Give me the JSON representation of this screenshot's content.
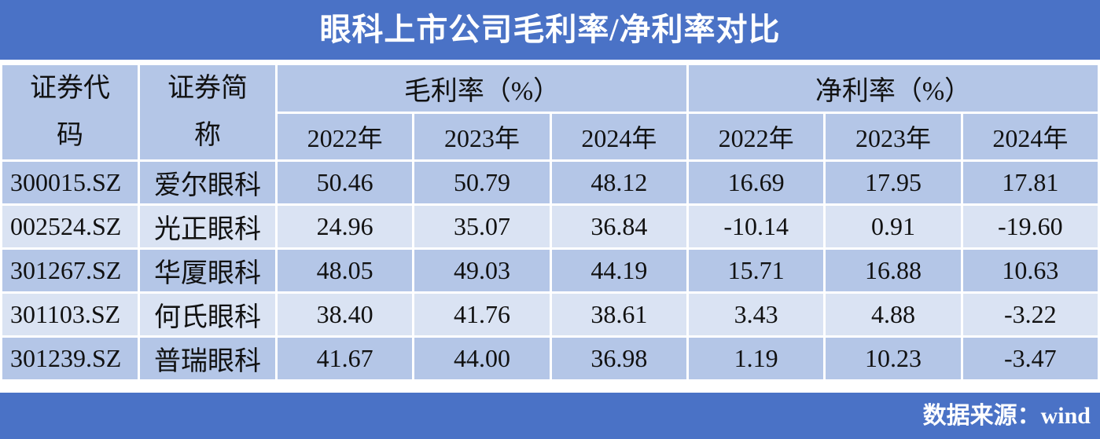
{
  "title": "眼科上市公司毛利率/净利率对比",
  "table": {
    "header": {
      "code": "证券代码",
      "name": "证券简称",
      "groups": [
        "毛利率（%）",
        "净利率（%）"
      ],
      "years": [
        "2022年",
        "2023年",
        "2024年",
        "2022年",
        "2023年",
        "2024年"
      ]
    },
    "rows": [
      [
        "300015.SZ",
        "爱尔眼科",
        "50.46",
        "50.79",
        "48.12",
        "16.69",
        "17.95",
        "17.81"
      ],
      [
        "002524.SZ",
        "光正眼科",
        "24.96",
        "35.07",
        "36.84",
        "-10.14",
        "0.91",
        "-19.60"
      ],
      [
        "301267.SZ",
        "华厦眼科",
        "48.05",
        "49.03",
        "44.19",
        "15.71",
        "16.88",
        "10.63"
      ],
      [
        "301103.SZ",
        "何氏眼科",
        "38.40",
        "41.76",
        "38.61",
        "3.43",
        "4.88",
        "-3.22"
      ],
      [
        "301239.SZ",
        "普瑞眼科",
        "41.67",
        "44.00",
        "36.98",
        "1.19",
        "10.23",
        "-3.47"
      ]
    ]
  },
  "footer": "数据来源：wind"
}
